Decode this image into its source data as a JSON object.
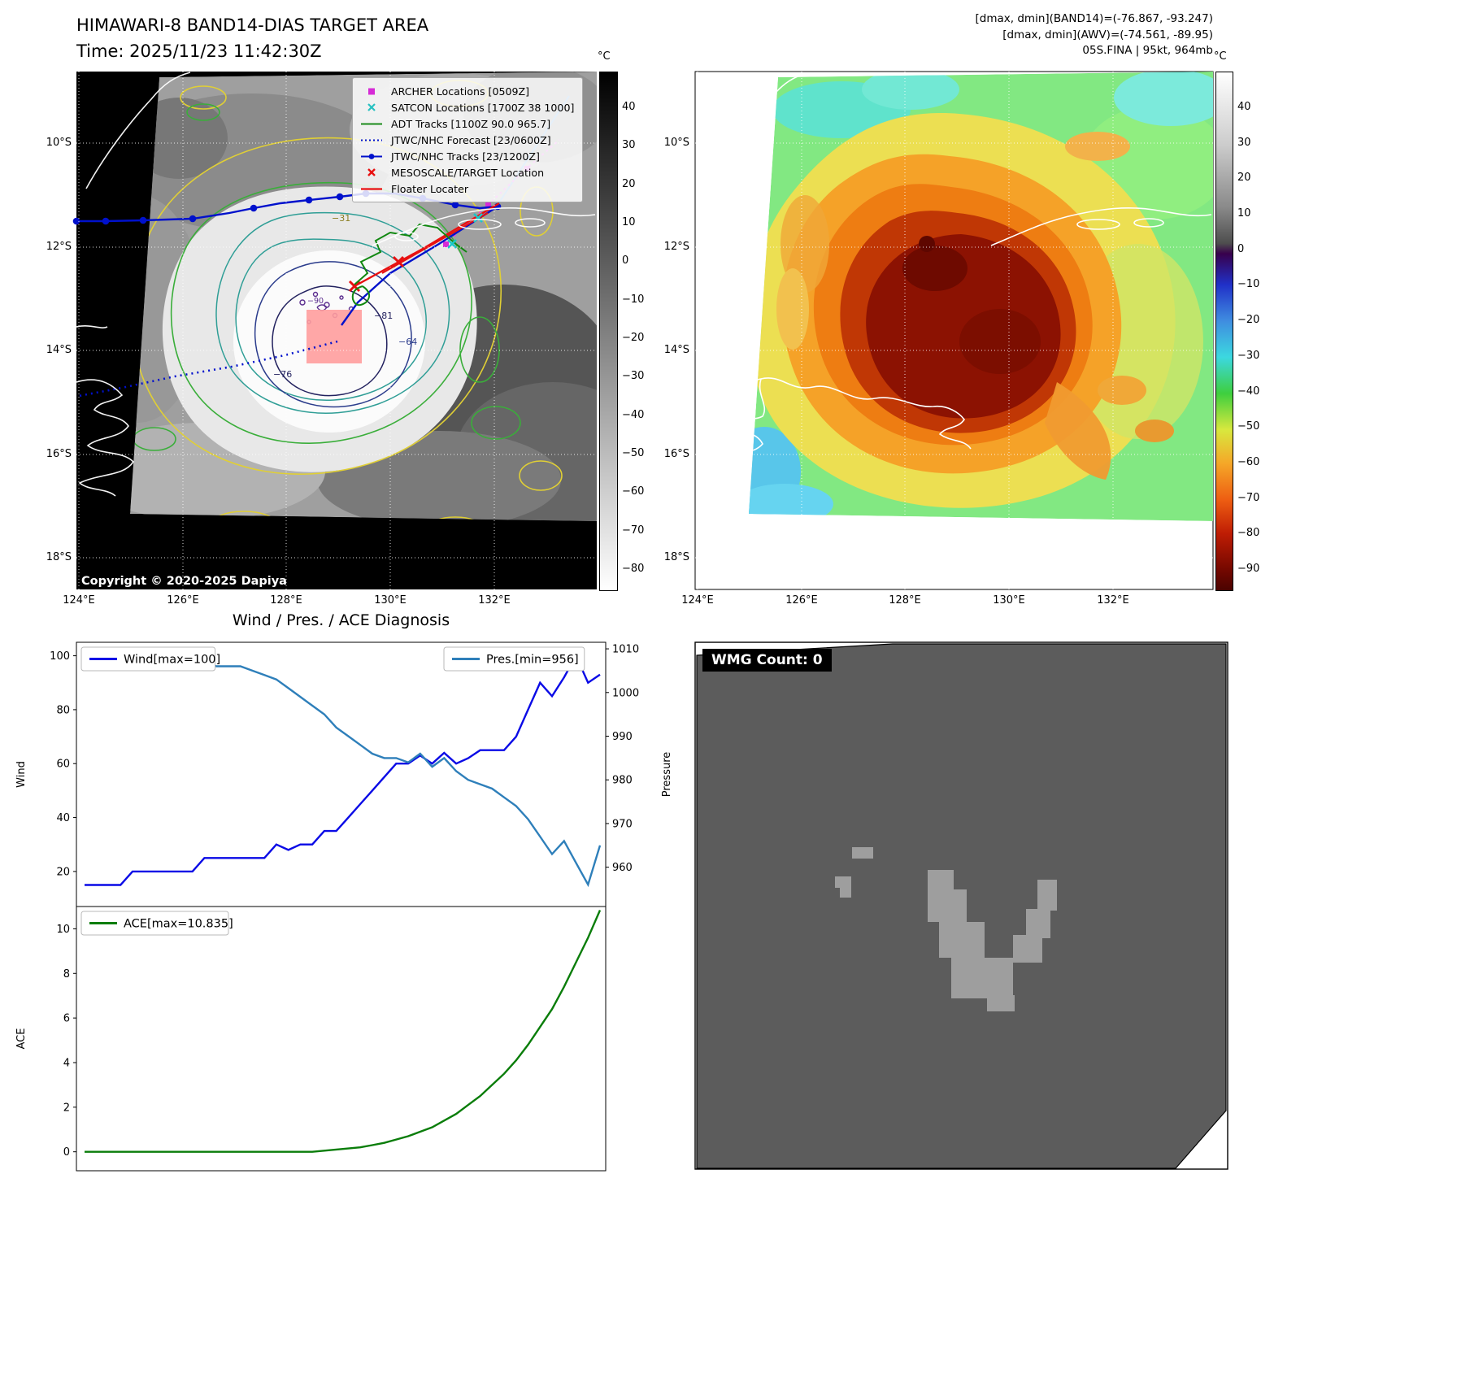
{
  "header": {
    "title": "HIMAWARI-8 BAND14-DIAS TARGET AREA",
    "time_line": "Time: 2025/11/23 11:42:30Z",
    "info_lines": [
      "[dmax, dmin](BAND14)=(-76.867, -93.247)",
      "[dmax, dmin](AWV)=(-74.561, -89.95)",
      "05S.FINA | 95kt, 964mb"
    ]
  },
  "map_common": {
    "lat_ticks": [
      "10°S",
      "12°S",
      "14°S",
      "16°S",
      "18°S"
    ],
    "lon_ticks": [
      "124°E",
      "126°E",
      "128°E",
      "130°E",
      "132°E"
    ]
  },
  "panel_band14": {
    "colorbar": {
      "unit": "°C",
      "ticks": [
        "40",
        "30",
        "20",
        "10",
        "0",
        "−10",
        "−20",
        "−30",
        "−40",
        "−50",
        "−60",
        "−70",
        "−80"
      ]
    },
    "legend": [
      {
        "label": "ARCHER Locations [0509Z]",
        "marker": "magenta-square"
      },
      {
        "label": "SATCON Locations [1700Z 38 1000]",
        "marker": "cyan-x"
      },
      {
        "label": "ADT Tracks [1100Z 90.0 965.7]",
        "marker": "green-line"
      },
      {
        "label": "JTWC/NHC Forecast [23/0600Z]",
        "marker": "blue-dotted-line"
      },
      {
        "label": "JTWC/NHC Tracks [23/1200Z]",
        "marker": "blue-marker-line"
      },
      {
        "label": "MESOSCALE/TARGET Location",
        "marker": "red-x"
      },
      {
        "label": "Floater Locater",
        "marker": "red-line"
      }
    ],
    "contour_labels": [
      "−31",
      "−64",
      "−76",
      "−81",
      "−90"
    ],
    "copyright": "Copyright © 2020-2025 Dapiya"
  },
  "panel_awv": {
    "colorbar": {
      "unit": "°C",
      "ticks": [
        "40",
        "30",
        "20",
        "10",
        "0",
        "−10",
        "−20",
        "−30",
        "−40",
        "−50",
        "−60",
        "−70",
        "−80",
        "−90"
      ]
    }
  },
  "wmg": {
    "label": "WMG Count: 0"
  },
  "chart_data": [
    {
      "type": "line",
      "title": "Wind / Pres. / ACE Diagnosis",
      "series": [
        {
          "name": "Wind[max=100]",
          "axis": "left",
          "color": "#0a0ae6",
          "values": [
            15,
            15,
            15,
            15,
            20,
            20,
            20,
            20,
            20,
            20,
            25,
            25,
            25,
            25,
            25,
            25,
            30,
            28,
            30,
            30,
            35,
            35,
            40,
            45,
            50,
            55,
            60,
            60,
            63,
            60,
            64,
            60,
            62,
            65,
            65,
            65,
            70,
            80,
            90,
            85,
            92,
            100,
            90,
            93
          ]
        },
        {
          "name": "Pres.[min=956]",
          "axis": "right",
          "color": "#2e7fba",
          "values": [
            1008,
            1008,
            1008,
            1008,
            1008,
            1008,
            1007,
            1007,
            1007,
            1007,
            1007,
            1006,
            1006,
            1006,
            1005,
            1004,
            1003,
            1001,
            999,
            997,
            995,
            992,
            990,
            988,
            986,
            985,
            985,
            984,
            986,
            983,
            985,
            982,
            980,
            979,
            978,
            976,
            974,
            971,
            967,
            963,
            966,
            961,
            956,
            965
          ]
        }
      ],
      "left_axis": {
        "label": "Wind",
        "ticks": [
          20,
          40,
          60,
          80,
          100
        ],
        "range": [
          7,
          105
        ]
      },
      "right_axis": {
        "label": "Pressure",
        "ticks": [
          960,
          970,
          980,
          990,
          1000,
          1010
        ],
        "range": [
          951,
          1011.5
        ]
      }
    },
    {
      "type": "line",
      "title": "",
      "series": [
        {
          "name": "ACE[max=10.835]",
          "axis": "left",
          "color": "#0a7d0a",
          "values": [
            0,
            0,
            0,
            0,
            0,
            0,
            0,
            0,
            0,
            0,
            0,
            0,
            0,
            0,
            0,
            0,
            0,
            0,
            0,
            0,
            0.05,
            0.1,
            0.15,
            0.2,
            0.3,
            0.4,
            0.55,
            0.7,
            0.9,
            1.1,
            1.4,
            1.7,
            2.1,
            2.5,
            3.0,
            3.5,
            4.1,
            4.8,
            5.6,
            6.4,
            7.4,
            8.5,
            9.6,
            10.835
          ]
        }
      ],
      "left_axis": {
        "label": "ACE",
        "ticks": [
          0,
          2,
          4,
          6,
          8,
          10
        ],
        "range": [
          -0.85,
          11.0
        ]
      }
    }
  ]
}
